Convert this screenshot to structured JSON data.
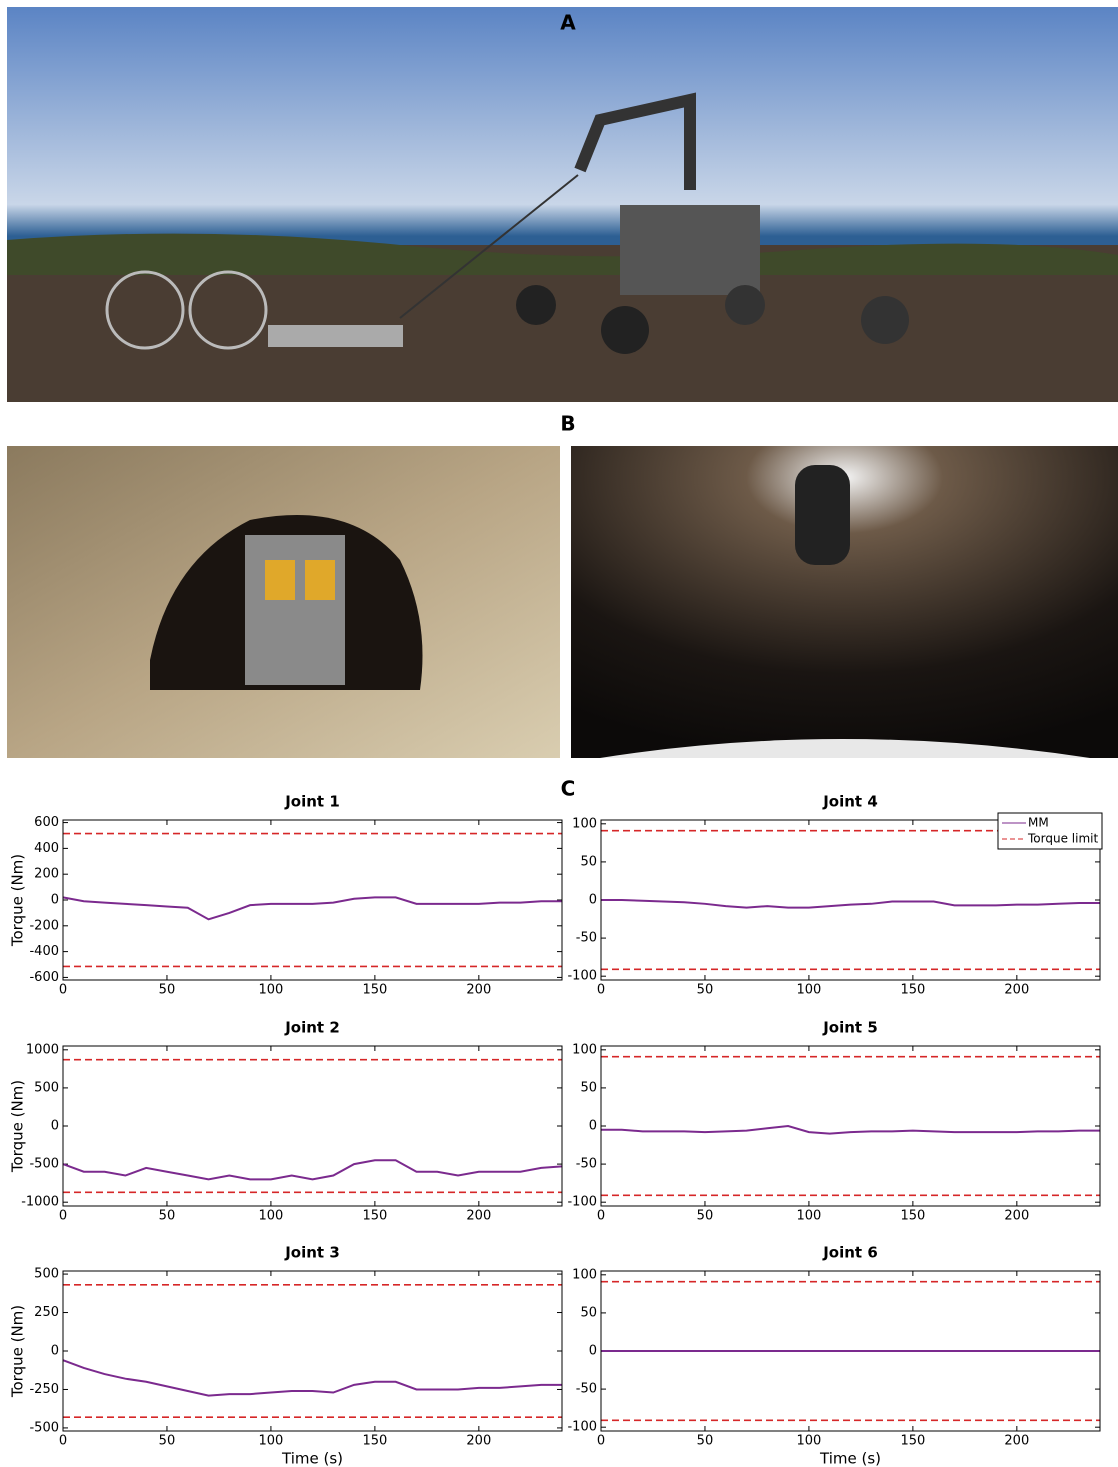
{
  "panels": {
    "a": "A",
    "b": "B",
    "c": "C"
  },
  "chart_data": [
    {
      "type": "line",
      "title": "Joint 1",
      "ylabel": "Torque (Nm)",
      "xlim": [
        0,
        240
      ],
      "xticks": [
        0,
        50,
        100,
        150,
        200
      ],
      "ylim": [
        -620,
        620
      ],
      "yticks": [
        -600,
        -400,
        -200,
        0,
        200,
        400,
        600
      ],
      "series": [
        {
          "color": "#7b2a8e",
          "x": [
            0,
            10,
            20,
            30,
            40,
            50,
            60,
            70,
            80,
            90,
            100,
            110,
            120,
            130,
            140,
            150,
            160,
            170,
            180,
            190,
            200,
            210,
            220,
            230,
            240
          ],
          "values": [
            20,
            -10,
            -20,
            -30,
            -40,
            -50,
            -60,
            -150,
            -100,
            -40,
            -30,
            -30,
            -30,
            -20,
            10,
            20,
            20,
            -30,
            -30,
            -30,
            -30,
            -20,
            -20,
            -10,
            -10
          ]
        }
      ],
      "limit_lines": {
        "color": "#d62728",
        "values": [
          515,
          -515
        ]
      }
    },
    {
      "type": "line",
      "title": "Joint 4",
      "xlim": [
        0,
        240
      ],
      "xticks": [
        0,
        50,
        100,
        150,
        200
      ],
      "ylim": [
        -105,
        105
      ],
      "yticks": [
        -100,
        -50,
        0,
        50,
        100
      ],
      "series": [
        {
          "name": "MM",
          "color": "#7b2a8e",
          "x": [
            0,
            10,
            20,
            30,
            40,
            50,
            60,
            70,
            80,
            90,
            100,
            110,
            120,
            130,
            140,
            150,
            160,
            170,
            180,
            190,
            200,
            210,
            220,
            230,
            240
          ],
          "values": [
            0,
            0,
            -1,
            -2,
            -3,
            -5,
            -8,
            -10,
            -8,
            -10,
            -10,
            -8,
            -6,
            -5,
            -2,
            -2,
            -2,
            -7,
            -7,
            -7,
            -6,
            -6,
            -5,
            -4,
            -4
          ]
        }
      ],
      "limit_lines": {
        "name": "Torque limit",
        "color": "#d62728",
        "values": [
          91,
          -91
        ]
      },
      "legend": "upper right"
    },
    {
      "type": "line",
      "title": "Joint 2",
      "ylabel": "Torque (Nm)",
      "xlim": [
        0,
        240
      ],
      "xticks": [
        0,
        50,
        100,
        150,
        200
      ],
      "ylim": [
        -1050,
        1050
      ],
      "yticks": [
        -1000,
        -500,
        0,
        500,
        1000
      ],
      "series": [
        {
          "color": "#7b2a8e",
          "x": [
            0,
            10,
            20,
            30,
            40,
            50,
            60,
            70,
            80,
            90,
            100,
            110,
            120,
            130,
            140,
            150,
            160,
            170,
            180,
            190,
            200,
            210,
            220,
            230,
            240
          ],
          "values": [
            -500,
            -600,
            -600,
            -650,
            -550,
            -600,
            -650,
            -700,
            -650,
            -700,
            -700,
            -650,
            -700,
            -650,
            -500,
            -450,
            -450,
            -600,
            -600,
            -650,
            -600,
            -600,
            -600,
            -550,
            -530
          ]
        }
      ],
      "limit_lines": {
        "color": "#d62728",
        "values": [
          870,
          -870
        ]
      }
    },
    {
      "type": "line",
      "title": "Joint 5",
      "xlim": [
        0,
        240
      ],
      "xticks": [
        0,
        50,
        100,
        150,
        200
      ],
      "ylim": [
        -105,
        105
      ],
      "yticks": [
        -100,
        -50,
        0,
        50,
        100
      ],
      "series": [
        {
          "color": "#7b2a8e",
          "x": [
            0,
            10,
            20,
            30,
            40,
            50,
            60,
            70,
            80,
            90,
            100,
            110,
            120,
            130,
            140,
            150,
            160,
            170,
            180,
            190,
            200,
            210,
            220,
            230,
            240
          ],
          "values": [
            -5,
            -5,
            -7,
            -7,
            -7,
            -8,
            -7,
            -6,
            -3,
            0,
            -8,
            -10,
            -8,
            -7,
            -7,
            -6,
            -7,
            -8,
            -8,
            -8,
            -8,
            -7,
            -7,
            -6,
            -6
          ]
        }
      ],
      "limit_lines": {
        "color": "#d62728",
        "values": [
          91,
          -91
        ]
      }
    },
    {
      "type": "line",
      "title": "Joint 3",
      "ylabel": "Torque (Nm)",
      "xlabel": "Time (s)",
      "xlim": [
        0,
        240
      ],
      "xticks": [
        0,
        50,
        100,
        150,
        200
      ],
      "ylim": [
        -520,
        520
      ],
      "yticks": [
        -500,
        -250,
        0,
        250,
        500
      ],
      "series": [
        {
          "color": "#7b2a8e",
          "x": [
            0,
            10,
            20,
            30,
            40,
            50,
            60,
            70,
            80,
            90,
            100,
            110,
            120,
            130,
            140,
            150,
            160,
            170,
            180,
            190,
            200,
            210,
            220,
            230,
            240
          ],
          "values": [
            -60,
            -110,
            -150,
            -180,
            -200,
            -230,
            -260,
            -290,
            -280,
            -280,
            -270,
            -260,
            -260,
            -270,
            -220,
            -200,
            -200,
            -250,
            -250,
            -250,
            -240,
            -240,
            -230,
            -220,
            -220
          ]
        }
      ],
      "limit_lines": {
        "color": "#d62728",
        "values": [
          430,
          -430
        ]
      }
    },
    {
      "type": "line",
      "title": "Joint 6",
      "xlabel": "Time (s)",
      "xlim": [
        0,
        240
      ],
      "xticks": [
        0,
        50,
        100,
        150,
        200
      ],
      "ylim": [
        -105,
        105
      ],
      "yticks": [
        -100,
        -50,
        0,
        50,
        100
      ],
      "series": [
        {
          "color": "#7b2a8e",
          "x": [
            0,
            10,
            20,
            30,
            40,
            50,
            60,
            70,
            80,
            90,
            100,
            110,
            120,
            130,
            140,
            150,
            160,
            170,
            180,
            190,
            200,
            210,
            220,
            230,
            240
          ],
          "values": [
            0,
            0,
            0,
            0,
            0,
            0,
            0,
            0,
            0,
            0,
            0,
            0,
            0,
            0,
            0,
            0,
            0,
            0,
            0,
            0,
            0,
            0,
            0,
            0,
            0
          ]
        }
      ],
      "limit_lines": {
        "color": "#d62728",
        "values": [
          91,
          -91
        ]
      }
    }
  ]
}
